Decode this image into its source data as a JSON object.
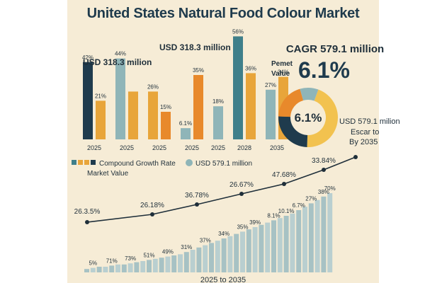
{
  "title": "United States Natural Food Colour Market",
  "colors": {
    "navy": "#1f3b4d",
    "teal": "#3f7f8a",
    "tealLight": "#8fb5b8",
    "amber": "#e8a53a",
    "orange": "#e8892b",
    "gold": "#f2c24f",
    "cream": "#f6ecd6",
    "line": "#1f2f3a"
  },
  "top_left_value": "USD 318.3 milion",
  "top_mid_value": "USD 318.3 million",
  "cagr_header": "CAGR 579.1 million",
  "pemet_label": "Pemet\nValue",
  "big_percent": "6.1%",
  "donut_center": "6.1%",
  "donut_side_text": [
    "USD 579.1 milion",
    "Escar to",
    "By 2035"
  ],
  "legend": {
    "item1": "Compound Growth Rate",
    "item2": "USD 579.1 million",
    "sub": "Market Value"
  },
  "bottom_label": "2025 to 2035",
  "chart_data": [
    {
      "type": "bar",
      "title": "",
      "categories": [
        "2025",
        "2025",
        "2025",
        "2025",
        "2025",
        "2028",
        "2035"
      ],
      "groups": [
        {
          "category": "2025",
          "bars": [
            {
              "value": 42,
              "label": "42%",
              "color": "navy"
            },
            {
              "value": 21,
              "label": "21%",
              "color": "amber"
            }
          ]
        },
        {
          "category": "2025",
          "bars": [
            {
              "value": 44,
              "label": "44%",
              "color": "tealLight"
            },
            {
              "value": 26,
              "label": "",
              "color": "amber"
            }
          ]
        },
        {
          "category": "2025",
          "bars": [
            {
              "value": 26,
              "label": "26%",
              "color": "amber"
            },
            {
              "value": 15,
              "label": "15%",
              "color": "orange"
            }
          ]
        },
        {
          "category": "2025",
          "bars": [
            {
              "value": 6.1,
              "label": "6.1%",
              "color": "tealLight"
            },
            {
              "value": 35,
              "label": "35%",
              "color": "orange"
            }
          ]
        },
        {
          "category": "2025",
          "bars": [
            {
              "value": 18,
              "label": "18%",
              "color": "tealLight"
            }
          ]
        },
        {
          "category": "2028",
          "bars": [
            {
              "value": 56,
              "label": "56%",
              "color": "teal"
            },
            {
              "value": 36,
              "label": "36%",
              "color": "amber"
            }
          ]
        },
        {
          "category": "2035",
          "bars": [
            {
              "value": 27,
              "label": "27%",
              "color": "tealLight"
            },
            {
              "value": 34,
              "label": "34%",
              "color": "amber"
            }
          ]
        }
      ]
    },
    {
      "type": "pie",
      "title": "",
      "center_label": "6.1%",
      "slices": [
        {
          "value": 45,
          "color": "gold"
        },
        {
          "value": 25,
          "color": "navy"
        },
        {
          "value": 20,
          "color": "orange"
        },
        {
          "value": 10,
          "color": "tealLight"
        }
      ]
    },
    {
      "type": "line",
      "title": "",
      "points": [
        {
          "index": 0,
          "value": 26.35,
          "label": "26.3.5%"
        },
        {
          "index": 1,
          "value": 26.18,
          "label": "26.18%"
        },
        {
          "index": 2,
          "value": 36.78,
          "label": "36.78%"
        },
        {
          "index": 3,
          "value": 26.67,
          "label": "26.67%"
        },
        {
          "index": 4,
          "value": 47.68,
          "label": "47.68%"
        },
        {
          "index": 5,
          "value": 33.84,
          "label": "33.84%"
        },
        {
          "index": 6,
          "value": 70,
          "label": ""
        }
      ]
    },
    {
      "type": "bar",
      "title": "",
      "xlabel": "2025 to 2035",
      "values": [
        3,
        4,
        5,
        5,
        6,
        7,
        7,
        8,
        9,
        10,
        11,
        12,
        13,
        14,
        15,
        16,
        18,
        20,
        22,
        24,
        26,
        28,
        30,
        32,
        34,
        36,
        38,
        40,
        42,
        44,
        46,
        48,
        50,
        52,
        55,
        58,
        61,
        64,
        67,
        70
      ],
      "annotations": [
        {
          "bar": 1,
          "label": "5%"
        },
        {
          "bar": 4,
          "label": "71%"
        },
        {
          "bar": 7,
          "label": "73%"
        },
        {
          "bar": 10,
          "label": "51%"
        },
        {
          "bar": 13,
          "label": "49%"
        },
        {
          "bar": 16,
          "label": "31%"
        },
        {
          "bar": 19,
          "label": "37%"
        },
        {
          "bar": 22,
          "label": "34%"
        },
        {
          "bar": 25,
          "label": "35%"
        },
        {
          "bar": 27,
          "label": "39%"
        },
        {
          "bar": 30,
          "label": "8.1%"
        },
        {
          "bar": 32,
          "label": "10.1%"
        },
        {
          "bar": 34,
          "label": "6.7%"
        },
        {
          "bar": 36,
          "label": "27%"
        },
        {
          "bar": 38,
          "label": "38%"
        },
        {
          "bar": 39,
          "label": "70%"
        }
      ]
    }
  ]
}
